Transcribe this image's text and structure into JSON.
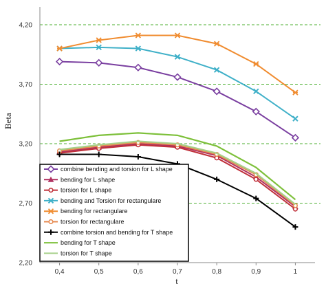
{
  "chart_data": {
    "type": "line",
    "xlabel": "t",
    "ylabel": "Beta",
    "x": [
      0.4,
      0.5,
      0.6,
      0.7,
      0.8,
      0.9,
      1.0
    ],
    "x_tick_labels": [
      "0,4",
      "0,5",
      "0,6",
      "0,7",
      "0,8",
      "0,9",
      "1"
    ],
    "ylim": [
      2.2,
      4.35
    ],
    "y_ticks": [
      2.2,
      2.7,
      3.2,
      3.7,
      4.2
    ],
    "y_tick_labels": [
      "2,20",
      "2,70",
      "3,20",
      "3,70",
      "4,20"
    ],
    "grid": "horizontal dashed green",
    "grid_color": "#4caf30",
    "legend_position": "bottom-left",
    "series": [
      {
        "name": "combine bending and torsion for L shape",
        "color": "#7a3fa0",
        "marker": "diamond",
        "values": [
          3.89,
          3.88,
          3.84,
          3.76,
          3.64,
          3.47,
          3.25
        ]
      },
      {
        "name": "bending for L shape",
        "color": "#b03060",
        "marker": "triangle",
        "values": [
          3.13,
          3.17,
          3.2,
          3.18,
          3.1,
          2.92,
          2.67
        ]
      },
      {
        "name": "torsion for L shape",
        "color": "#c0303a",
        "marker": "circle",
        "values": [
          3.12,
          3.16,
          3.19,
          3.17,
          3.08,
          2.9,
          2.65
        ]
      },
      {
        "name": "bending and Torsion for rectangulare",
        "color": "#3fb0c8",
        "marker": "x",
        "values": [
          4.0,
          4.01,
          4.0,
          3.93,
          3.82,
          3.64,
          3.41
        ]
      },
      {
        "name": "bending for rectangulare",
        "color": "#f08c30",
        "marker": "x-square",
        "values": [
          4.0,
          4.07,
          4.11,
          4.11,
          4.04,
          3.87,
          3.63
        ]
      },
      {
        "name": "torsion  for rectangulare",
        "color": "#e68a50",
        "marker": "circle",
        "values": [
          3.14,
          3.18,
          3.21,
          3.19,
          3.11,
          2.94,
          2.68
        ]
      },
      {
        "name": "combine torsion  and bending for T shape",
        "color": "#000000",
        "marker": "plus",
        "values": [
          3.11,
          3.11,
          3.09,
          3.03,
          2.9,
          2.74,
          2.5
        ]
      },
      {
        "name": "bending for T shape",
        "color": "#7dc03a",
        "marker": "none",
        "values": [
          3.22,
          3.27,
          3.29,
          3.27,
          3.18,
          3.0,
          2.73
        ]
      },
      {
        "name": "torsion for T shape",
        "color": "#a8d08a",
        "marker": "none",
        "values": [
          3.15,
          3.19,
          3.22,
          3.2,
          3.12,
          2.95,
          2.69
        ]
      }
    ]
  }
}
